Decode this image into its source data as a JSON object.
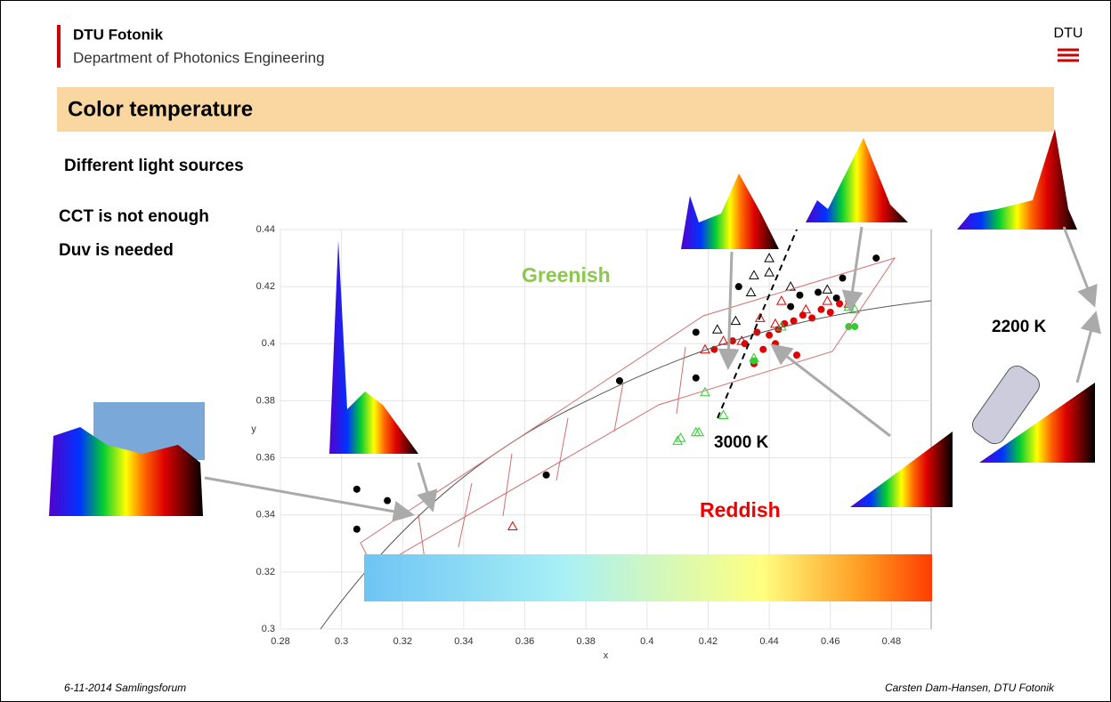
{
  "header": {
    "brand": "DTU Fotonik",
    "department": "Department of Photonics Engineering",
    "logo": "DTU",
    "title": "Color temperature"
  },
  "notes": [
    "Different light sources",
    "CCT is not enough",
    "Duv is needed"
  ],
  "annotations": {
    "greenish": "Greenish",
    "reddish": "Reddish",
    "cct_3000": "3000 K",
    "cct_2200": "2200 K"
  },
  "footer": {
    "left": "6-11-2014 Samlingsforum",
    "right": "Carsten Dam-Hansen, DTU Fotonik"
  },
  "chart_data": {
    "type": "scatter",
    "x_label": "x",
    "y_label": "y",
    "xlim": [
      0.28,
      0.493
    ],
    "ylim": [
      0.3,
      0.44
    ],
    "xticks": [
      0.28,
      0.3,
      0.32,
      0.34,
      0.36,
      0.38,
      0.4,
      0.42,
      0.44,
      0.46,
      0.48
    ],
    "yticks": [
      0.3,
      0.32,
      0.34,
      0.36,
      0.38,
      0.4,
      0.42,
      0.44
    ],
    "grid": true,
    "series": [
      {
        "color": "#000000",
        "marker": "circle",
        "x": [
          0.305,
          0.305,
          0.315,
          0.367,
          0.391,
          0.416,
          0.416,
          0.43,
          0.447,
          0.45,
          0.462,
          0.464,
          0.475,
          0.456
        ],
        "values": [
          0.349,
          0.335,
          0.345,
          0.354,
          0.387,
          0.404,
          0.388,
          0.42,
          0.413,
          0.417,
          0.416,
          0.423,
          0.43,
          0.418
        ]
      },
      {
        "color": "#000000",
        "marker": "triangle-open",
        "x": [
          0.423,
          0.429,
          0.435,
          0.44,
          0.434,
          0.447,
          0.459,
          0.44
        ],
        "values": [
          0.405,
          0.408,
          0.424,
          0.425,
          0.418,
          0.42,
          0.419,
          0.43
        ]
      },
      {
        "color": "#e00000",
        "marker": "circle",
        "x": [
          0.422,
          0.428,
          0.432,
          0.436,
          0.44,
          0.443,
          0.445,
          0.448,
          0.451,
          0.454,
          0.457,
          0.46,
          0.463,
          0.466,
          0.438,
          0.449,
          0.435,
          0.442
        ],
        "values": [
          0.398,
          0.401,
          0.4,
          0.404,
          0.403,
          0.405,
          0.407,
          0.408,
          0.41,
          0.409,
          0.412,
          0.411,
          0.414,
          0.415,
          0.398,
          0.396,
          0.393,
          0.4
        ]
      },
      {
        "color": "#e00000",
        "marker": "triangle-open",
        "x": [
          0.356,
          0.419,
          0.425,
          0.431,
          0.437,
          0.442,
          0.452,
          0.459,
          0.466,
          0.444
        ],
        "values": [
          0.336,
          0.398,
          0.401,
          0.401,
          0.409,
          0.407,
          0.412,
          0.415,
          0.414,
          0.415
        ]
      },
      {
        "color": "#33cc33",
        "marker": "triangle-open",
        "x": [
          0.41,
          0.411,
          0.416,
          0.417,
          0.419,
          0.425,
          0.435,
          0.444,
          0.466,
          0.468
        ],
        "values": [
          0.366,
          0.367,
          0.369,
          0.369,
          0.383,
          0.375,
          0.395,
          0.406,
          0.413,
          0.412
        ]
      },
      {
        "color": "#33cc33",
        "marker": "circle",
        "x": [
          0.466,
          0.468,
          0.435
        ],
        "values": [
          0.406,
          0.406,
          0.394
        ]
      }
    ]
  }
}
